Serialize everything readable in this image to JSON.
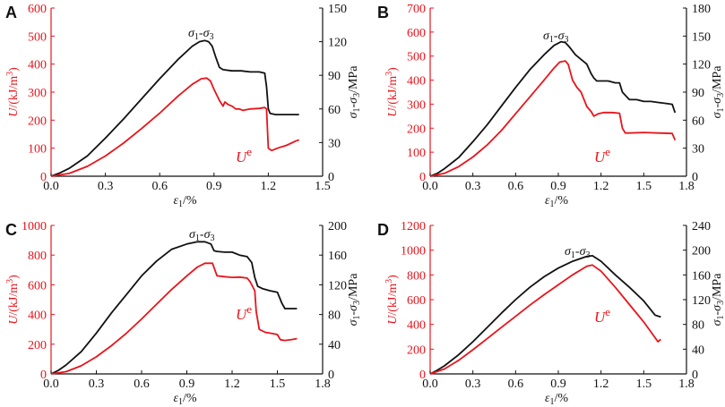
{
  "colors": {
    "red": "#e8141b",
    "black": "#111111"
  },
  "chart_data": [
    {
      "panel": "A",
      "type": "line",
      "xlabel_sym": "ε",
      "xlabel_sub": "1",
      "xlabel_unit": "/%",
      "ylabel_left_pre": "U",
      "ylabel_left_unit": "/(kJ/m",
      "ylabel_left_sup": "3",
      "ylabel_left_post": ")",
      "ylabel_right": {
        "s1": "σ",
        "s1sub": "1",
        "dash": "-σ",
        "s3sub": "3",
        "unit": "/MPa"
      },
      "xlim": [
        0,
        1.5
      ],
      "xticks": [
        0,
        0.3,
        0.6,
        0.9,
        1.2,
        1.5
      ],
      "xtick_labels": [
        "0.0",
        "0.3",
        "0.6",
        "0.9",
        "1.2",
        "1.5"
      ],
      "ylim_left": [
        0,
        600
      ],
      "yticks_left": [
        0,
        100,
        200,
        300,
        400,
        500,
        600
      ],
      "ylim_right": [
        0,
        150
      ],
      "yticks_right": [
        0,
        30,
        60,
        90,
        120,
        150
      ],
      "annotations": {
        "stress": {
          "s": "σ",
          "a": "1",
          "m": "-σ",
          "b": "3"
        },
        "energy": {
          "base": "U",
          "sup": "e"
        }
      },
      "series": [
        {
          "name": "σ1-σ3",
          "axis": "right",
          "color": "black",
          "x": [
            0,
            0.05,
            0.1,
            0.2,
            0.3,
            0.4,
            0.5,
            0.6,
            0.7,
            0.78,
            0.82,
            0.85,
            0.87,
            0.89,
            0.91,
            0.93,
            0.95,
            1.0,
            1.05,
            1.1,
            1.15,
            1.18,
            1.19,
            1.2,
            1.21,
            1.24,
            1.3,
            1.37
          ],
          "y": [
            0,
            3,
            7,
            18,
            34,
            51,
            69,
            87,
            104,
            116,
            120,
            121,
            120,
            116,
            106,
            97,
            95,
            94,
            94,
            93,
            93,
            92,
            80,
            60,
            56,
            55,
            55,
            55
          ]
        },
        {
          "name": "Ue",
          "axis": "left",
          "color": "red",
          "x": [
            0,
            0.1,
            0.2,
            0.3,
            0.4,
            0.5,
            0.6,
            0.7,
            0.78,
            0.83,
            0.86,
            0.88,
            0.9,
            0.93,
            0.95,
            0.96,
            0.98,
            1.0,
            1.02,
            1.04,
            1.06,
            1.1,
            1.15,
            1.18,
            1.19,
            1.2,
            1.21,
            1.22,
            1.25,
            1.3,
            1.35,
            1.37
          ],
          "y": [
            0,
            10,
            35,
            72,
            118,
            170,
            225,
            285,
            328,
            348,
            350,
            340,
            310,
            270,
            250,
            265,
            255,
            250,
            240,
            240,
            235,
            240,
            242,
            245,
            240,
            100,
            95,
            92,
            100,
            110,
            125,
            130
          ]
        }
      ]
    },
    {
      "panel": "B",
      "type": "line",
      "xlabel_sym": "ε",
      "xlabel_sub": "1",
      "xlabel_unit": "/%",
      "ylabel_left_pre": "U",
      "ylabel_left_unit": "/(kJ/m",
      "ylabel_left_sup": "3",
      "ylabel_left_post": ")",
      "ylabel_right": {
        "s1": "σ",
        "s1sub": "1",
        "dash": "-σ",
        "s3sub": "3",
        "unit": "/MPa"
      },
      "xlim": [
        0,
        1.8
      ],
      "xticks": [
        0,
        0.3,
        0.6,
        0.9,
        1.2,
        1.5,
        1.8
      ],
      "xtick_labels": [
        "0.0",
        "0.3",
        "0.6",
        "0.9",
        "1.2",
        "1.5",
        "1.8"
      ],
      "ylim_left": [
        0,
        700
      ],
      "yticks_left": [
        0,
        100,
        200,
        300,
        400,
        500,
        600,
        700
      ],
      "ylim_right": [
        0,
        180
      ],
      "yticks_right": [
        0,
        30,
        60,
        90,
        120,
        150,
        180
      ],
      "annotations": {
        "stress": {
          "s": "σ",
          "a": "1",
          "m": "-σ",
          "b": "3"
        },
        "energy": {
          "base": "U",
          "sup": "e"
        }
      },
      "series": [
        {
          "name": "σ1-σ3",
          "axis": "right",
          "color": "black",
          "x": [
            0,
            0.05,
            0.1,
            0.2,
            0.3,
            0.4,
            0.5,
            0.6,
            0.7,
            0.8,
            0.87,
            0.92,
            0.95,
            0.98,
            1.02,
            1.06,
            1.1,
            1.13,
            1.15,
            1.17,
            1.2,
            1.25,
            1.3,
            1.33,
            1.35,
            1.38,
            1.4,
            1.45,
            1.5,
            1.55,
            1.6,
            1.65,
            1.7,
            1.72
          ],
          "y": [
            0,
            3,
            8,
            20,
            37,
            55,
            75,
            95,
            114,
            130,
            140,
            144,
            143,
            138,
            130,
            125,
            120,
            110,
            105,
            102,
            102,
            102,
            100,
            100,
            90,
            85,
            82,
            82,
            80,
            80,
            79,
            78,
            77,
            68
          ]
        },
        {
          "name": "Ue",
          "axis": "left",
          "color": "red",
          "x": [
            0,
            0.1,
            0.2,
            0.3,
            0.4,
            0.5,
            0.6,
            0.7,
            0.8,
            0.87,
            0.91,
            0.95,
            0.97,
            1.0,
            1.03,
            1.06,
            1.08,
            1.1,
            1.13,
            1.15,
            1.18,
            1.22,
            1.28,
            1.33,
            1.35,
            1.37,
            1.4,
            1.5,
            1.6,
            1.7,
            1.72
          ],
          "y": [
            0,
            12,
            40,
            80,
            130,
            190,
            260,
            330,
            400,
            450,
            475,
            480,
            465,
            400,
            370,
            350,
            320,
            290,
            270,
            250,
            260,
            265,
            265,
            262,
            200,
            180,
            180,
            182,
            180,
            178,
            150
          ]
        }
      ]
    },
    {
      "panel": "C",
      "type": "line",
      "xlabel_sym": "ε",
      "xlabel_sub": "1",
      "xlabel_unit": "/%",
      "ylabel_left_pre": "U",
      "ylabel_left_unit": "/(kJ/m",
      "ylabel_left_sup": "3",
      "ylabel_left_post": ")",
      "ylabel_right": {
        "s1": "σ",
        "s1sub": "1",
        "dash": "-σ",
        "s3sub": "3",
        "unit": "/MPa"
      },
      "xlim": [
        0,
        1.8
      ],
      "xticks": [
        0,
        0.3,
        0.6,
        0.9,
        1.2,
        1.5,
        1.8
      ],
      "xtick_labels": [
        "0.0",
        "0.3",
        "0.6",
        "0.9",
        "1.2",
        "1.5",
        "1.8"
      ],
      "ylim_left": [
        0,
        1000
      ],
      "yticks_left": [
        0,
        200,
        400,
        600,
        800,
        1000
      ],
      "ylim_right": [
        0,
        200
      ],
      "yticks_right": [
        0,
        40,
        80,
        120,
        160,
        200
      ],
      "annotations": {
        "stress": {
          "s": "σ",
          "a": "1",
          "m": "-σ",
          "b": "3"
        },
        "energy": {
          "base": "U",
          "sup": "e"
        }
      },
      "series": [
        {
          "name": "σ1-σ3",
          "axis": "right",
          "color": "black",
          "x": [
            0,
            0.05,
            0.1,
            0.2,
            0.3,
            0.4,
            0.5,
            0.6,
            0.7,
            0.8,
            0.9,
            0.97,
            1.02,
            1.06,
            1.08,
            1.1,
            1.15,
            1.2,
            1.25,
            1.3,
            1.33,
            1.35,
            1.37,
            1.4,
            1.45,
            1.5,
            1.53,
            1.55,
            1.6,
            1.63
          ],
          "y": [
            0,
            5,
            12,
            30,
            55,
            82,
            107,
            132,
            152,
            168,
            175,
            178,
            178,
            175,
            166,
            165,
            164,
            164,
            160,
            158,
            150,
            130,
            118,
            115,
            112,
            110,
            95,
            88,
            88,
            88
          ]
        },
        {
          "name": "Ue",
          "axis": "left",
          "color": "red",
          "x": [
            0,
            0.1,
            0.2,
            0.3,
            0.4,
            0.5,
            0.6,
            0.7,
            0.8,
            0.9,
            0.97,
            1.02,
            1.07,
            1.1,
            1.15,
            1.2,
            1.25,
            1.3,
            1.32,
            1.35,
            1.36,
            1.38,
            1.42,
            1.48,
            1.5,
            1.52,
            1.55,
            1.6,
            1.63
          ],
          "y": [
            0,
            15,
            55,
            115,
            190,
            275,
            370,
            470,
            570,
            660,
            720,
            745,
            745,
            660,
            655,
            650,
            652,
            645,
            620,
            560,
            420,
            300,
            280,
            270,
            265,
            230,
            225,
            232,
            238
          ]
        }
      ]
    },
    {
      "panel": "D",
      "type": "line",
      "xlabel_sym": "ε",
      "xlabel_sub": "1",
      "xlabel_unit": "/%",
      "ylabel_left_pre": "U",
      "ylabel_left_unit": "/(kJ/m",
      "ylabel_left_sup": "3",
      "ylabel_left_post": ")",
      "ylabel_right": {
        "s1": "σ",
        "s1sub": "1",
        "dash": "-σ",
        "s3sub": "3",
        "unit": "/MPa"
      },
      "xlim": [
        0,
        1.8
      ],
      "xticks": [
        0,
        0.3,
        0.6,
        0.9,
        1.2,
        1.5,
        1.8
      ],
      "xtick_labels": [
        "0.0",
        "0.3",
        "0.6",
        "0.9",
        "1.2",
        "1.5",
        "1.8"
      ],
      "ylim_left": [
        0,
        1200
      ],
      "yticks_left": [
        0,
        200,
        400,
        600,
        800,
        1000,
        1200
      ],
      "ylim_right": [
        0,
        240
      ],
      "yticks_right": [
        0,
        40,
        80,
        120,
        160,
        200,
        240
      ],
      "annotations": {
        "stress": {
          "s": "σ",
          "a": "1",
          "m": "-σ",
          "b": "3"
        },
        "energy": {
          "base": "U",
          "sup": "e"
        }
      },
      "series": [
        {
          "name": "σ1-σ3",
          "axis": "right",
          "color": "black",
          "x": [
            0,
            0.05,
            0.1,
            0.2,
            0.3,
            0.4,
            0.5,
            0.6,
            0.7,
            0.8,
            0.9,
            1.0,
            1.1,
            1.14,
            1.2,
            1.3,
            1.4,
            1.5,
            1.58,
            1.62
          ],
          "y": [
            0,
            6,
            13,
            31,
            52,
            75,
            98,
            120,
            140,
            157,
            171,
            182,
            190,
            191,
            182,
            160,
            140,
            118,
            95,
            92
          ]
        },
        {
          "name": "Ue",
          "axis": "left",
          "color": "red",
          "x": [
            0,
            0.1,
            0.2,
            0.3,
            0.4,
            0.5,
            0.6,
            0.7,
            0.8,
            0.9,
            1.0,
            1.1,
            1.14,
            1.2,
            1.3,
            1.4,
            1.5,
            1.6,
            1.62
          ],
          "y": [
            0,
            40,
            110,
            195,
            285,
            375,
            465,
            555,
            640,
            720,
            800,
            870,
            880,
            830,
            700,
            560,
            420,
            260,
            280
          ]
        }
      ]
    }
  ]
}
